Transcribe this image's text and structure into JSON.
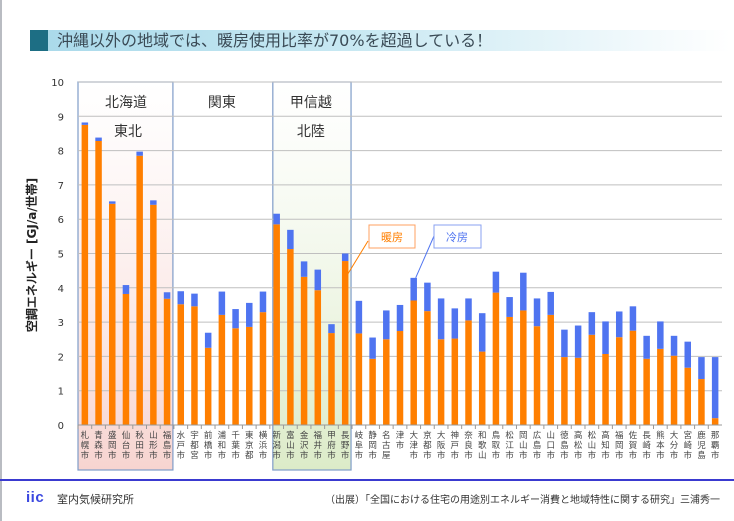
{
  "slide": {
    "title": "沖縄以外の地域では、暖房使用比率が70%を超過している！",
    "footer_logo": "iic",
    "footer_org": "室内気候研究所",
    "footer_source": "（出展）「全国における住宅の用途別エネルギー消費と地域特性に関する研究」三浦秀一"
  },
  "colors": {
    "heating": "#ff7f00",
    "cooling": "#4f74f0",
    "title_accent": "#1d6e84",
    "region_tohoku_fill": "#f7d4d0",
    "region_koshinetsu_fill": "#dcebc8",
    "region_border": "#7f9cc8",
    "footer_line": "#3a3ad0"
  },
  "chart_data": {
    "type": "bar",
    "stacked": true,
    "title": "",
    "xlabel": "",
    "ylabel": "空調エネルギー [GJ/a/世帯]",
    "ylim": [
      0,
      10
    ],
    "yticks": [
      0,
      1,
      2,
      3,
      4,
      5,
      6,
      7,
      8,
      9,
      10
    ],
    "grid": true,
    "categories": [
      "札幌市",
      "青森市",
      "盛岡市",
      "仙台市",
      "秋田市",
      "山形市",
      "福島市",
      "水戸市",
      "宇都宮",
      "前橋市",
      "浦和市",
      "千葉市",
      "東京都",
      "横浜市",
      "新潟市",
      "富山市",
      "金沢市",
      "福井市",
      "甲府市",
      "長野市",
      "岐阜市",
      "静岡市",
      "名古屋",
      "津市",
      "大津市",
      "京都市",
      "大阪市",
      "神戸市",
      "奈良市",
      "和歌山",
      "鳥取市",
      "松江市",
      "岡山市",
      "広島市",
      "山口市",
      "徳島市",
      "高松市",
      "松山市",
      "高知市",
      "福岡市",
      "佐賀市",
      "長崎市",
      "熊本市",
      "大分市",
      "宮崎市",
      "鹿児島",
      "那覇市"
    ],
    "series": [
      {
        "name": "暖房",
        "values": [
          8.75,
          8.28,
          6.45,
          3.82,
          7.85,
          6.42,
          3.68,
          3.52,
          3.46,
          2.25,
          3.21,
          2.82,
          2.86,
          3.29,
          5.85,
          5.13,
          4.32,
          3.93,
          2.68,
          4.78,
          2.67,
          1.93,
          2.5,
          2.74,
          3.63,
          3.32,
          2.5,
          2.52,
          3.05,
          2.14,
          3.86,
          3.15,
          3.34,
          2.88,
          3.21,
          1.98,
          1.96,
          2.63,
          2.07,
          2.56,
          2.75,
          1.93,
          2.22,
          2.02,
          1.67,
          1.34,
          0.2
        ]
      },
      {
        "name": "冷房",
        "values": [
          0.07,
          0.1,
          0.07,
          0.26,
          0.12,
          0.13,
          0.19,
          0.38,
          0.37,
          0.44,
          0.68,
          0.56,
          0.7,
          0.6,
          0.31,
          0.56,
          0.45,
          0.6,
          0.26,
          0.22,
          0.95,
          0.62,
          0.84,
          0.76,
          0.66,
          0.83,
          1.19,
          0.88,
          0.64,
          1.12,
          0.61,
          0.58,
          1.1,
          0.81,
          0.67,
          0.8,
          0.94,
          0.66,
          0.95,
          0.75,
          0.71,
          0.67,
          0.8,
          0.58,
          0.76,
          0.64,
          1.78
        ]
      }
    ],
    "legend": [
      {
        "label": "暖房",
        "series": "暖房",
        "placement": "callout"
      },
      {
        "label": "冷房",
        "series": "冷房",
        "placement": "callout"
      }
    ],
    "region_groups": [
      {
        "lines": [
          "北海道",
          "東北"
        ],
        "from": 0,
        "to": 6,
        "highlight": "red"
      },
      {
        "lines": [
          "関東"
        ],
        "from": 7,
        "to": 13,
        "highlight": "none"
      },
      {
        "lines": [
          "甲信越",
          "北陸"
        ],
        "from": 14,
        "to": 19,
        "highlight": "green"
      }
    ]
  }
}
